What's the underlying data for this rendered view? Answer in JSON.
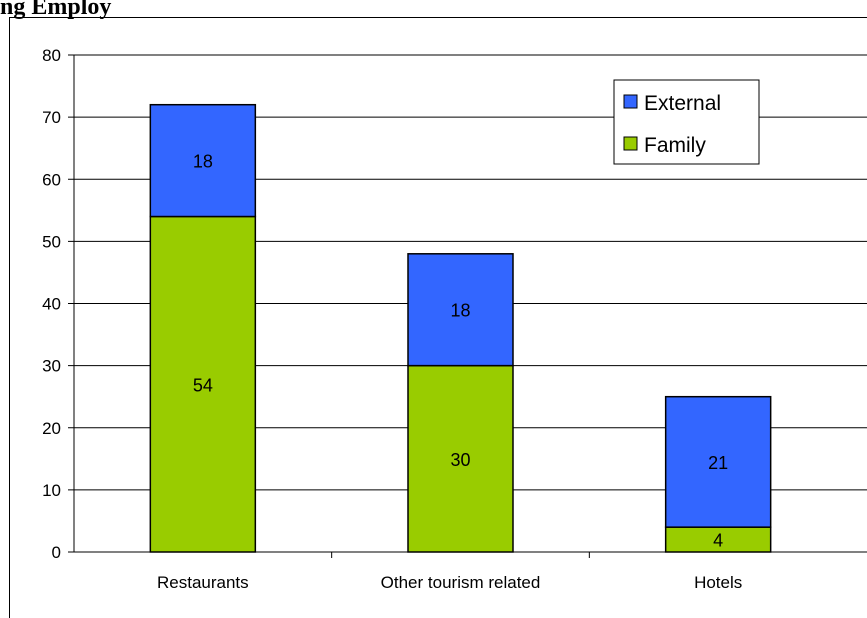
{
  "heading": "ng Employ",
  "chart_data": {
    "type": "bar",
    "stacked": true,
    "categories": [
      "Restaurants",
      "Other tourism related",
      "Hotels"
    ],
    "series": [
      {
        "name": "Family",
        "values": [
          54,
          30,
          4
        ],
        "color": "#99cc00"
      },
      {
        "name": "External",
        "values": [
          18,
          18,
          21
        ],
        "color": "#3366ff"
      }
    ],
    "title": "",
    "xlabel": "",
    "ylabel": "",
    "ylim": [
      0,
      80
    ],
    "yticks": [
      0,
      10,
      20,
      30,
      40,
      50,
      60,
      70,
      80
    ],
    "grid": true,
    "legend_position": "top-right",
    "legend_order": [
      "External",
      "Family"
    ],
    "data_labels": true
  }
}
